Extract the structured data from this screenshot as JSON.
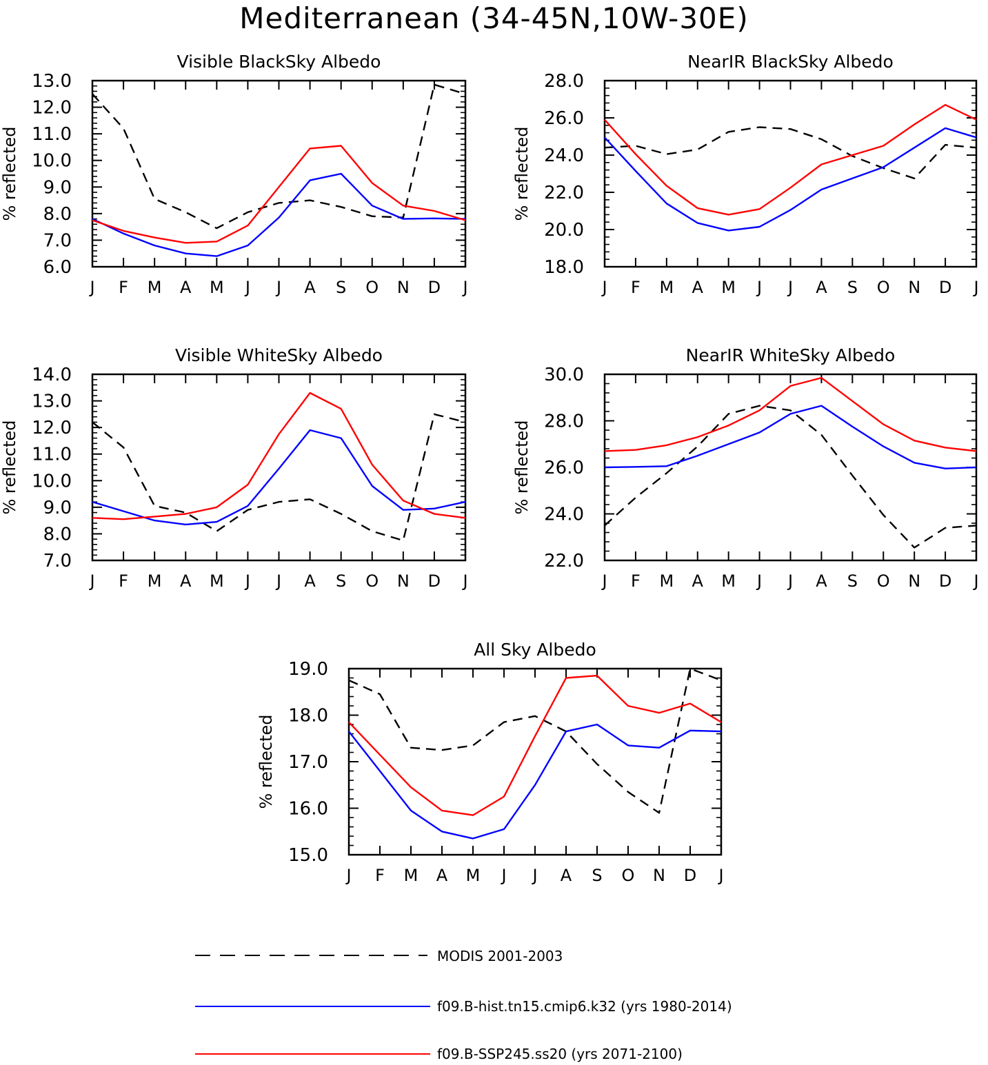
{
  "figure": {
    "title": "Mediterranean (34-45N,10W-30E)"
  },
  "colors": {
    "modis": "#000000",
    "hist": "#0000ff",
    "ssp": "#ff0000",
    "axes": "#000000",
    "background": "#ffffff"
  },
  "legend": [
    {
      "label": "MODIS 2001-2003",
      "style": "dashed",
      "color": "#000000"
    },
    {
      "label": "f09.B-hist.tn15.cmip6.k32 (yrs 1980-2014)",
      "style": "solid",
      "color": "#0000ff"
    },
    {
      "label": "f09.B-SSP245.ss20 (yrs 2071-2100)",
      "style": "solid",
      "color": "#ff0000"
    }
  ],
  "chart_data": [
    {
      "type": "line",
      "title": "Visible BlackSky Albedo",
      "ylabel": "% reflected",
      "categories": [
        "J",
        "F",
        "M",
        "A",
        "M",
        "J",
        "J",
        "A",
        "S",
        "O",
        "N",
        "D",
        "J"
      ],
      "ylim": [
        6.0,
        13.0
      ],
      "yticks": [
        "6.0",
        "7.0",
        "8.0",
        "9.0",
        "10.0",
        "11.0",
        "12.0",
        "13.0"
      ],
      "series": [
        {
          "name": "MODIS 2001-2003",
          "values": [
            12.5,
            11.2,
            8.55,
            8.05,
            7.45,
            8.05,
            8.4,
            8.5,
            8.25,
            7.9,
            7.85,
            12.85,
            12.5
          ]
        },
        {
          "name": "f09.B-hist.tn15.cmip6.k32 (yrs 1980-2014)",
          "values": [
            7.8,
            7.25,
            6.8,
            6.5,
            6.4,
            6.8,
            7.85,
            9.25,
            9.5,
            8.3,
            7.8,
            7.82,
            7.8
          ]
        },
        {
          "name": "f09.B-SSP245.ss20 (yrs 2071-2100)",
          "values": [
            7.75,
            7.35,
            7.1,
            6.9,
            6.95,
            7.55,
            9.0,
            10.45,
            10.55,
            9.15,
            8.3,
            8.1,
            7.75
          ]
        }
      ]
    },
    {
      "type": "line",
      "title": "NearIR BlackSky Albedo",
      "ylabel": "% reflected",
      "categories": [
        "J",
        "F",
        "M",
        "A",
        "M",
        "J",
        "J",
        "A",
        "S",
        "O",
        "N",
        "D",
        "J"
      ],
      "ylim": [
        18.0,
        28.0
      ],
      "yticks": [
        "18.0",
        "20.0",
        "22.0",
        "24.0",
        "26.0",
        "28.0"
      ],
      "series": [
        {
          "name": "MODIS 2001-2003",
          "values": [
            24.4,
            24.5,
            24.05,
            24.3,
            25.25,
            25.5,
            25.4,
            24.85,
            23.95,
            23.3,
            22.75,
            24.55,
            24.4
          ]
        },
        {
          "name": "f09.B-hist.tn15.cmip6.k32 (yrs 1980-2014)",
          "values": [
            24.95,
            23.15,
            21.4,
            20.35,
            19.95,
            20.15,
            21.05,
            22.15,
            22.75,
            23.35,
            24.4,
            25.45,
            24.95
          ]
        },
        {
          "name": "f09.B-SSP245.ss20 (yrs 2071-2100)",
          "values": [
            25.9,
            24.05,
            22.35,
            21.15,
            20.8,
            21.1,
            22.25,
            23.5,
            24.0,
            24.5,
            25.65,
            26.7,
            25.9
          ]
        }
      ]
    },
    {
      "type": "line",
      "title": "Visible WhiteSky Albedo",
      "ylabel": "% reflected",
      "categories": [
        "J",
        "F",
        "M",
        "A",
        "M",
        "J",
        "J",
        "A",
        "S",
        "O",
        "N",
        "D",
        "J"
      ],
      "ylim": [
        7.0,
        14.0
      ],
      "yticks": [
        "7.0",
        "8.0",
        "9.0",
        "10.0",
        "11.0",
        "12.0",
        "13.0",
        "14.0"
      ],
      "series": [
        {
          "name": "MODIS 2001-2003",
          "values": [
            12.2,
            11.25,
            9.05,
            8.8,
            8.1,
            8.9,
            9.2,
            9.3,
            8.75,
            8.1,
            7.75,
            12.5,
            12.2
          ]
        },
        {
          "name": "f09.B-hist.tn15.cmip6.k32 (yrs 1980-2014)",
          "values": [
            9.2,
            8.85,
            8.5,
            8.35,
            8.45,
            9.05,
            10.45,
            11.9,
            11.6,
            9.8,
            8.9,
            8.95,
            9.2
          ]
        },
        {
          "name": "f09.B-SSP245.ss20 (yrs 2071-2100)",
          "values": [
            8.6,
            8.55,
            8.65,
            8.75,
            9.0,
            9.85,
            11.75,
            13.3,
            12.7,
            10.6,
            9.25,
            8.75,
            8.6
          ]
        }
      ]
    },
    {
      "type": "line",
      "title": "NearIR WhiteSky Albedo",
      "ylabel": "% reflected",
      "categories": [
        "J",
        "F",
        "M",
        "A",
        "M",
        "J",
        "J",
        "A",
        "S",
        "O",
        "N",
        "D",
        "J"
      ],
      "ylim": [
        22.0,
        30.0
      ],
      "yticks": [
        "22.0",
        "24.0",
        "26.0",
        "28.0",
        "30.0"
      ],
      "series": [
        {
          "name": "MODIS 2001-2003",
          "values": [
            23.5,
            24.7,
            25.75,
            26.9,
            28.3,
            28.65,
            28.45,
            27.4,
            25.65,
            23.95,
            22.55,
            23.4,
            23.5
          ]
        },
        {
          "name": "f09.B-hist.tn15.cmip6.k32 (yrs 1980-2014)",
          "values": [
            26.0,
            26.02,
            26.05,
            26.5,
            27.0,
            27.5,
            28.3,
            28.65,
            27.75,
            26.9,
            26.2,
            25.95,
            26.0
          ]
        },
        {
          "name": "f09.B-SSP245.ss20 (yrs 2071-2100)",
          "values": [
            26.7,
            26.75,
            26.95,
            27.3,
            27.8,
            28.45,
            29.5,
            29.85,
            28.85,
            27.85,
            27.15,
            26.85,
            26.7
          ]
        }
      ]
    },
    {
      "type": "line",
      "title": "All Sky Albedo",
      "ylabel": "% reflected",
      "categories": [
        "J",
        "F",
        "M",
        "A",
        "M",
        "J",
        "J",
        "A",
        "S",
        "O",
        "N",
        "D",
        "J"
      ],
      "ylim": [
        15.0,
        19.0
      ],
      "yticks": [
        "15.0",
        "16.0",
        "17.0",
        "18.0",
        "19.0"
      ],
      "series": [
        {
          "name": "MODIS 2001-2003",
          "values": [
            18.75,
            18.45,
            17.3,
            17.25,
            17.35,
            17.85,
            17.98,
            17.65,
            16.95,
            16.35,
            15.9,
            19.0,
            18.75
          ]
        },
        {
          "name": "f09.B-hist.tn15.cmip6.k32 (yrs 1980-2014)",
          "values": [
            17.65,
            16.8,
            15.95,
            15.5,
            15.35,
            15.55,
            16.5,
            17.65,
            17.8,
            17.35,
            17.3,
            17.67,
            17.65
          ]
        },
        {
          "name": "f09.B-SSP245.ss20 (yrs 2071-2100)",
          "values": [
            17.85,
            17.15,
            16.45,
            15.95,
            15.85,
            16.25,
            17.55,
            18.8,
            18.85,
            18.2,
            18.05,
            18.25,
            17.85
          ]
        }
      ]
    }
  ]
}
